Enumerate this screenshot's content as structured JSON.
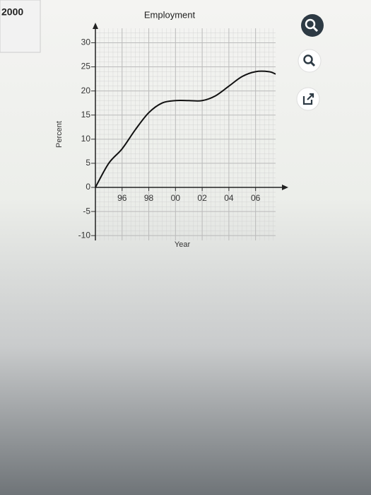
{
  "sidebar": {
    "label": "2000"
  },
  "chart_data": {
    "type": "line",
    "title": "Employment",
    "x_label": "Year",
    "y_label": "Percent",
    "x": [
      1994,
      1995,
      1996,
      1997,
      1998,
      1999,
      2000,
      2001,
      2002,
      2003,
      2004,
      2005,
      2006,
      2007,
      2007.5
    ],
    "values": [
      0,
      5,
      8,
      12,
      15.5,
      17.5,
      18,
      18,
      18,
      19,
      21,
      23,
      24,
      24,
      23.5
    ],
    "color": "#111111",
    "xlim": [
      1994,
      2007.5
    ],
    "xticks": [
      {
        "value": 1996,
        "label": "96"
      },
      {
        "value": 1998,
        "label": "98"
      },
      {
        "value": 2000,
        "label": "00"
      },
      {
        "value": 2002,
        "label": "02"
      },
      {
        "value": 2004,
        "label": "04"
      },
      {
        "value": 2006,
        "label": "06"
      }
    ],
    "ylim": [
      -11,
      33
    ],
    "yticks": [
      -10,
      -5,
      0,
      5,
      10,
      15,
      20,
      25,
      30
    ],
    "grid": true
  }
}
